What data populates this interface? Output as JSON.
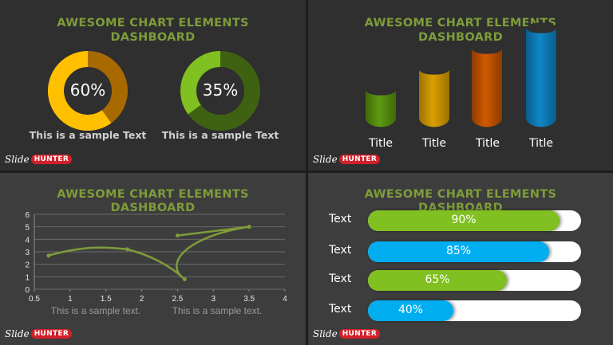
{
  "panel1": {
    "title_line1": "AWESOME CHART ELEMENTS",
    "title_line2": "DASHBOARD",
    "donuts": [
      {
        "value": 60,
        "label": "60%",
        "caption": "This is a sample Text",
        "color_main": "#ffc000",
        "color_rest": "#a86a00"
      },
      {
        "value": 35,
        "label": "35%",
        "caption": "This is a sample Text",
        "color_main": "#80c020",
        "color_rest": "#3f6212"
      }
    ]
  },
  "panel2": {
    "title_line1": "AWESOME CHART ELEMENTS",
    "title_line2": "DASHBOARD",
    "cylinders": [
      {
        "label": "Title",
        "value": 1,
        "color": "#5e9a12",
        "dark": "#3f6a08"
      },
      {
        "label": "Title",
        "value": 2,
        "color": "#d9a000",
        "dark": "#9c7200"
      },
      {
        "label": "Title",
        "value": 3,
        "color": "#d05a00",
        "dark": "#8e3a00"
      },
      {
        "label": "Title",
        "value": 4,
        "color": "#1187c8",
        "dark": "#0a5d8c"
      }
    ]
  },
  "panel3": {
    "title_line1": "AWESOME CHART ELEMENTS",
    "title_line2": "DASHBOARD",
    "captions": [
      "This is a sample text.",
      "This is a sample text."
    ]
  },
  "panel4": {
    "title_line1": "AWESOME CHART ELEMENTS",
    "title_line2": "DASHBOARD",
    "bars": [
      {
        "label": "Text",
        "value": 90,
        "text": "90%",
        "color": "#80c020"
      },
      {
        "label": "Text",
        "value": 85,
        "text": "85%",
        "color": "#00aeef"
      },
      {
        "label": "Text",
        "value": 65,
        "text": "65%",
        "color": "#80c020"
      },
      {
        "label": "Text",
        "value": 40,
        "text": "40%",
        "color": "#00aeef"
      }
    ]
  },
  "logo": {
    "slide": "Slide",
    "hunter": "HUNTER"
  },
  "chart_data": [
    {
      "type": "pie",
      "title": "AWESOME CHART ELEMENTS DASHBOARD",
      "values": [
        60,
        35
      ],
      "labels": [
        "60%",
        "35%"
      ]
    },
    {
      "type": "bar",
      "title": "AWESOME CHART ELEMENTS DASHBOARD",
      "categories": [
        "Title",
        "Title",
        "Title",
        "Title"
      ],
      "values": [
        1,
        2,
        3,
        4
      ]
    },
    {
      "type": "scatter",
      "title": "AWESOME CHART ELEMENTS DASHBOARD",
      "xlim": [
        0.5,
        4
      ],
      "ylim": [
        0,
        6
      ],
      "grid": true,
      "xticks": [
        "0.5",
        "1",
        "1.5",
        "2",
        "2.5",
        "3",
        "3.5",
        "4"
      ],
      "yticks": [
        "0",
        "1",
        "2",
        "3",
        "4",
        "5",
        "6"
      ],
      "series": [
        {
          "x": [
            0.7,
            1.8,
            2.6,
            3.5,
            2.5
          ],
          "y": [
            2.7,
            3.2,
            0.8,
            5.0,
            4.3
          ],
          "color": "#7e9c3a"
        }
      ]
    },
    {
      "type": "bar",
      "title": "AWESOME CHART ELEMENTS DASHBOARD",
      "categories": [
        "Text",
        "Text",
        "Text",
        "Text"
      ],
      "values": [
        90,
        85,
        65,
        40
      ]
    }
  ]
}
